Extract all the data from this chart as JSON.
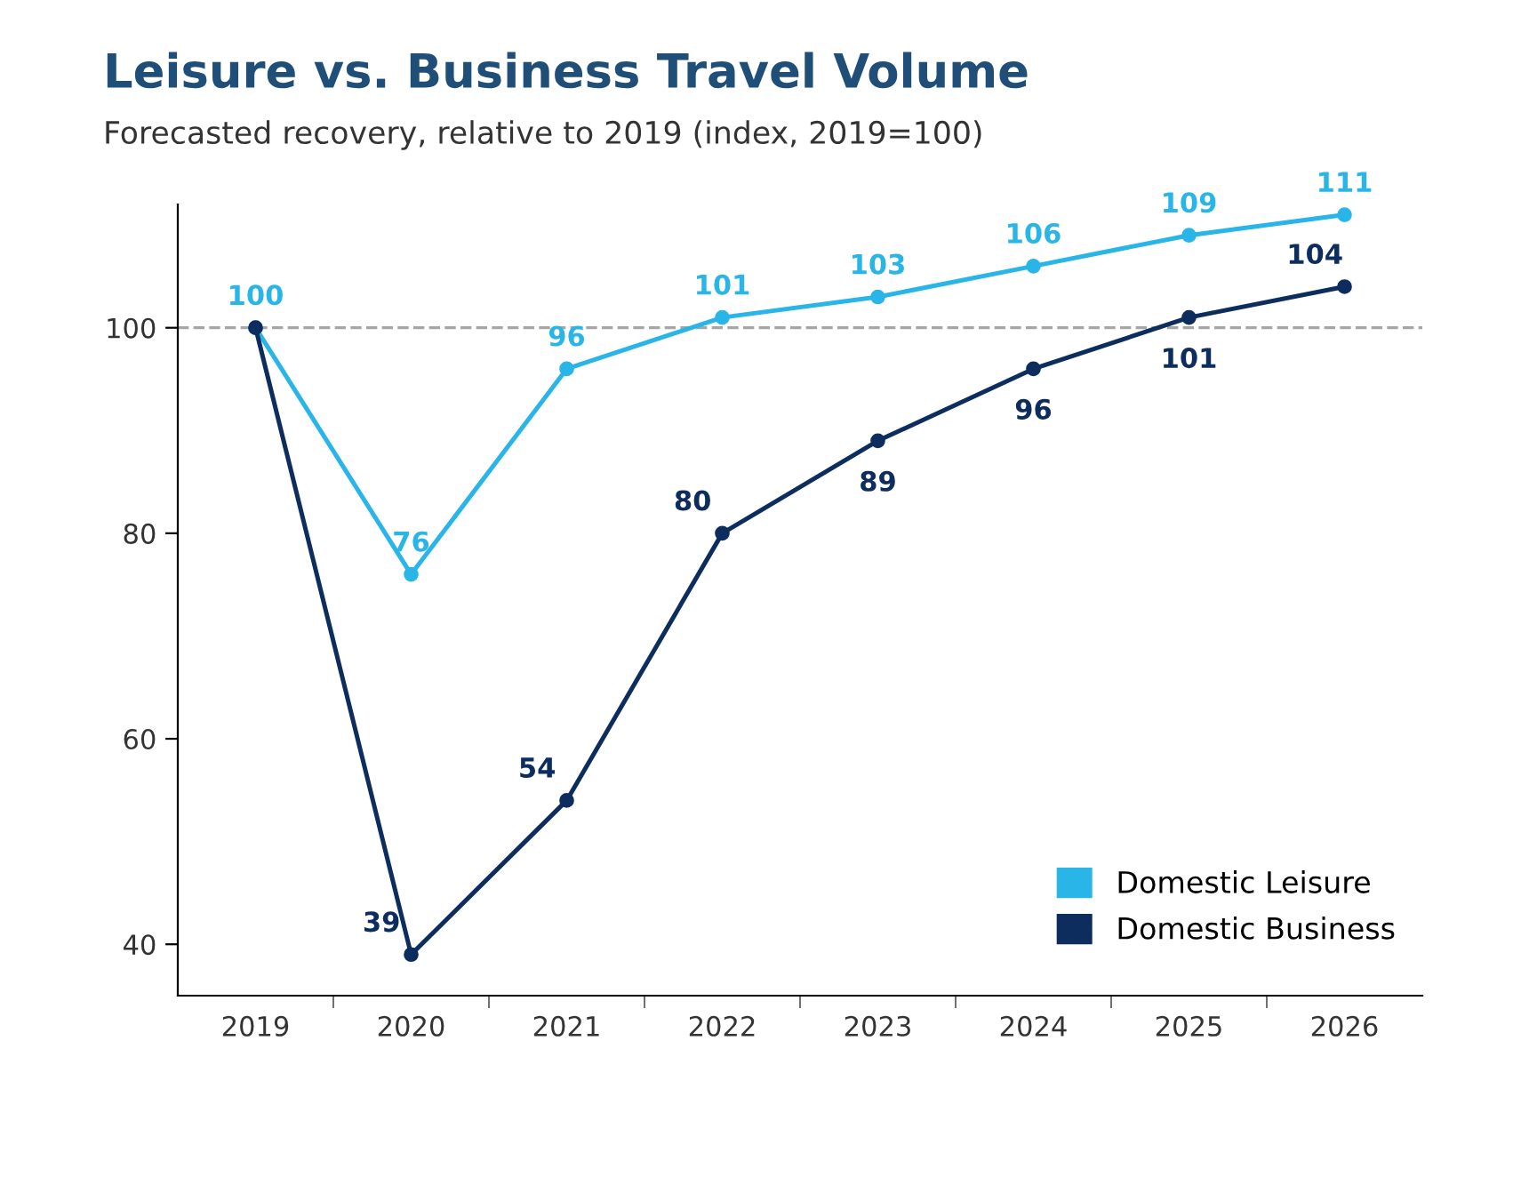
{
  "chart_data": {
    "type": "line",
    "title": "Leisure vs. Business Travel Volume",
    "subtitle": "Forecasted recovery, relative to 2019 (index, 2019=100)",
    "categories": [
      "2019",
      "2020",
      "2021",
      "2022",
      "2023",
      "2024",
      "2025",
      "2026"
    ],
    "series": [
      {
        "name": "Domestic Leisure",
        "color": "#29b5e8",
        "values": [
          100,
          76,
          96,
          101,
          103,
          106,
          109,
          111
        ],
        "value_labels": [
          "100",
          "76",
          "96",
          "101",
          "103",
          "106",
          "109",
          "111"
        ]
      },
      {
        "name": "Domestic Business",
        "color": "#0d2d5e",
        "values": [
          100,
          39,
          54,
          80,
          89,
          96,
          101,
          104
        ],
        "value_labels": [
          null,
          "39",
          "54",
          "80",
          "89",
          "96",
          "101",
          "104"
        ]
      }
    ],
    "ylim": [
      35,
      112
    ],
    "yticks": [
      40,
      60,
      80,
      100
    ],
    "ref_lines": [
      {
        "axis": "y",
        "value": 100,
        "label": null,
        "color": "#a6a6a6",
        "line_style": "dashed"
      }
    ],
    "grid": false,
    "legend": "bottom right",
    "marker": "circle",
    "line_style": "solid"
  }
}
